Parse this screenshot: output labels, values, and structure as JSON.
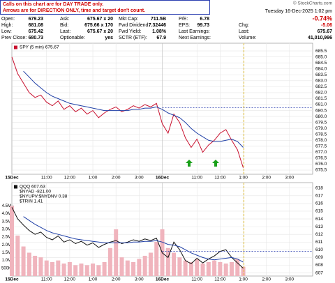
{
  "header": {
    "note": [
      "Calls on this chart are for DAY TRADE only.",
      "Arrows are for DIRECTION ONLY, time and target don't count."
    ],
    "copyright": "© StockCharts.com",
    "datetime": "Tuesday 16-Dec-2025 1:02 pm",
    "change_pct": "-0.74%",
    "quote": [
      [
        [
          "Open:",
          "679.23"
        ],
        [
          "Ask:",
          "675.67 x 20"
        ],
        [
          "Mkt Cap:",
          "711.5B"
        ],
        [
          "P/E:",
          "6.78"
        ]
      ],
      [
        [
          "High:",
          "681.08"
        ],
        [
          "Bid:",
          "675.66 x 170"
        ],
        [
          "Fwd Dividend:",
          "7.32446"
        ],
        [
          "EPS:",
          "99.73"
        ],
        [
          "Chg:",
          "-5.06"
        ]
      ],
      [
        [
          "Low:",
          "675.42"
        ],
        [
          "Last:",
          "675.67 x 20"
        ],
        [
          "Fwd Yield:",
          "1.08%"
        ],
        [
          "Last Earnings:"
        ],
        [
          "Last:",
          "675.67"
        ]
      ],
      [
        [
          "Prev Close:",
          "680.73"
        ],
        [
          "Optionable:",
          "yes"
        ],
        [
          "SCTR (ETF):",
          "67.9"
        ],
        [
          "Next Earnings:"
        ],
        [
          "Volume:",
          "41,010,996"
        ]
      ]
    ]
  },
  "chart_data": [
    {
      "type": "line",
      "x": [
        0,
        0.25,
        0.5,
        0.75,
        1,
        1.25,
        1.5,
        1.75,
        2,
        2.25,
        2.5,
        2.75,
        3,
        3.25,
        3.5,
        3.75,
        4,
        4.25,
        4.5,
        4.75,
        5,
        5.25,
        5.5,
        5.75,
        6,
        6.25,
        6.5,
        6.75,
        7,
        7.25,
        7.5,
        7.75,
        8,
        8.25,
        8.5,
        8.75,
        9,
        9.25,
        9.5,
        9.75,
        10
      ],
      "series": [
        {
          "name": "SPY (5 min) 675.67",
          "color": "#c8102e",
          "values": [
            685.0,
            683.6,
            682.8,
            682.0,
            681.6,
            681.8,
            681.2,
            680.9,
            681.3,
            680.6,
            680.9,
            680.4,
            680.7,
            680.2,
            680.5,
            679.9,
            680.3,
            680.6,
            680.8,
            680.4,
            680.6,
            680.9,
            680.7,
            681.0,
            680.8,
            681.1,
            679.4,
            678.6,
            680.2,
            679.5,
            678.2,
            677.4,
            678.1,
            677.0,
            677.6,
            678.0,
            678.6,
            678.9,
            678.0,
            677.2,
            675.7
          ]
        },
        {
          "color": "#1f3fa6",
          "values": [
            null,
            null,
            683.8,
            683.3,
            682.8,
            682.4,
            682.0,
            681.7,
            681.5,
            681.3,
            681.1,
            681.0,
            680.9,
            680.8,
            680.7,
            680.6,
            680.5,
            680.5,
            680.5,
            680.5,
            680.5,
            680.6,
            680.6,
            680.7,
            680.7,
            680.8,
            680.6,
            680.3,
            680.1,
            679.9,
            679.5,
            679.0,
            678.6,
            678.3,
            678.0,
            677.9,
            677.9,
            678.0,
            678.1,
            677.9,
            677.4
          ]
        }
      ],
      "xlim": [
        0,
        13
      ],
      "xticks": [
        {
          "value": 0,
          "label": "15Dec"
        },
        {
          "value": 1.5,
          "label": "11:00"
        },
        {
          "value": 2.5,
          "label": "12:00"
        },
        {
          "value": 3.5,
          "label": "1:00"
        },
        {
          "value": 4.5,
          "label": "2:00"
        },
        {
          "value": 5.5,
          "label": "3:00"
        },
        {
          "value": 6.5,
          "label": "16Dec"
        },
        {
          "value": 8,
          "label": "11:00"
        },
        {
          "value": 9,
          "label": "12:00"
        },
        {
          "value": 10,
          "label": "1:00"
        },
        {
          "value": 11,
          "label": "2:00"
        },
        {
          "value": 12,
          "label": "3:00"
        }
      ],
      "ylim": [
        675.15,
        686.15
      ],
      "yticks": [
        {
          "value": 675.5,
          "label": "675.5"
        },
        {
          "value": 676,
          "label": "676.0"
        },
        {
          "value": 676.5,
          "label": "676.5"
        },
        {
          "value": 677,
          "label": "677.0"
        },
        {
          "value": 677.5,
          "label": "677.5"
        },
        {
          "value": 678,
          "label": "678.0"
        },
        {
          "value": 678.5,
          "label": "678.5"
        },
        {
          "value": 679,
          "label": "679.0"
        },
        {
          "value": 679.5,
          "label": "679.5"
        },
        {
          "value": 680,
          "label": "680.0"
        },
        {
          "value": 680.5,
          "label": "680.5"
        },
        {
          "value": 681,
          "label": "681.0"
        },
        {
          "value": 681.5,
          "label": "681.5"
        },
        {
          "value": 682,
          "label": "682.0"
        },
        {
          "value": 682.5,
          "label": "682.5"
        },
        {
          "value": 683,
          "label": "683.0"
        },
        {
          "value": 683.5,
          "label": "683.5"
        },
        {
          "value": 684,
          "label": "684.0"
        },
        {
          "value": 684.5,
          "label": "684.5"
        },
        {
          "value": 685,
          "label": "685.0"
        },
        {
          "value": 685.5,
          "label": "685.5"
        }
      ],
      "hline": 680.73,
      "vline": 10.03,
      "grid": true
    },
    {
      "type": "combo",
      "x": [
        0,
        0.25,
        0.5,
        0.75,
        1,
        1.25,
        1.5,
        1.75,
        2,
        2.25,
        2.5,
        2.75,
        3,
        3.25,
        3.5,
        3.75,
        4,
        4.25,
        4.5,
        4.75,
        5,
        5.25,
        5.5,
        5.75,
        6,
        6.25,
        6.5,
        6.75,
        7,
        7.25,
        7.5,
        7.75,
        8,
        8.25,
        8.5,
        8.75,
        9,
        9.25,
        9.5,
        9.75,
        10
      ],
      "series": [
        {
          "kind": "bar",
          "color": "#f0b4bd",
          "values": [
            4500000,
            2600000,
            1900000,
            1500000,
            1300000,
            1200000,
            1000000,
            900000,
            1000000,
            800000,
            900000,
            700000,
            800000,
            700000,
            800000,
            700000,
            900000,
            1800000,
            3000000,
            1200000,
            1000000,
            900000,
            1100000,
            1300000,
            1500000,
            2200000,
            3000000,
            1800000,
            1500000,
            1200000,
            1000000,
            900000,
            1100000,
            800000,
            900000,
            1000000,
            900000,
            800000,
            900000,
            1100000,
            600000
          ]
        },
        {
          "kind": "line",
          "axis": "y2",
          "name": "QQQ 607.63",
          "color": "#111111",
          "values": [
            615.5,
            614.0,
            613.2,
            612.5,
            612.0,
            612.3,
            611.6,
            611.3,
            611.8,
            611.0,
            611.3,
            610.8,
            611.1,
            610.6,
            610.9,
            610.3,
            610.7,
            611.0,
            611.2,
            610.8,
            611.0,
            611.3,
            611.1,
            611.4,
            611.2,
            611.5,
            609.6,
            609.0,
            611.0,
            610.0,
            608.6,
            608.2,
            608.9,
            608.3,
            608.8,
            609.2,
            609.8,
            610.0,
            609.0,
            608.3,
            607.6
          ]
        },
        {
          "kind": "line",
          "axis": "y2",
          "color": "#1f3fa6",
          "values": [
            null,
            null,
            614.3,
            613.8,
            613.3,
            612.9,
            612.5,
            612.2,
            612.0,
            611.8,
            611.6,
            611.4,
            611.3,
            611.2,
            611.1,
            611.0,
            610.9,
            610.9,
            610.9,
            610.9,
            610.9,
            611.0,
            611.0,
            611.1,
            611.1,
            611.2,
            611.0,
            610.7,
            610.6,
            610.4,
            610.0,
            609.6,
            609.3,
            609.0,
            608.8,
            608.7,
            608.8,
            608.9,
            609.0,
            608.8,
            608.4
          ]
        }
      ],
      "indicators": [
        "$NYAD -821.00",
        "$NYUPV:$NYDNV 0.38",
        "$TRIN 1.41"
      ],
      "xlim": [
        0,
        13
      ],
      "xticks": [
        {
          "value": 0,
          "label": "15Dec"
        },
        {
          "value": 1.5,
          "label": "11:00"
        },
        {
          "value": 2.5,
          "label": "12:00"
        },
        {
          "value": 3.5,
          "label": "1:00"
        },
        {
          "value": 4.5,
          "label": "2:00"
        },
        {
          "value": 5.5,
          "label": "3:00"
        },
        {
          "value": 6.5,
          "label": "16Dec"
        },
        {
          "value": 8,
          "label": "11:00"
        },
        {
          "value": 9,
          "label": "12:00"
        },
        {
          "value": 10,
          "label": "1:00"
        },
        {
          "value": 11,
          "label": "2:00"
        },
        {
          "value": 12,
          "label": "3:00"
        }
      ],
      "ylim": [
        0,
        6000000
      ],
      "yticks": [
        {
          "value": 500000,
          "label": "500K"
        },
        {
          "value": 1000000,
          "label": "1.0M"
        },
        {
          "value": 1500000,
          "label": "1.5M"
        },
        {
          "value": 2000000,
          "label": "2.0M"
        },
        {
          "value": 2500000,
          "label": "2.5M"
        },
        {
          "value": 3000000,
          "label": "3.0M"
        },
        {
          "value": 3500000,
          "label": "3.5M"
        },
        {
          "value": 4000000,
          "label": "4.0M"
        },
        {
          "value": 4500000,
          "label": "4.5M"
        }
      ],
      "y2lim": [
        606.6,
        618.7
      ],
      "y2ticks": [
        607,
        608,
        609,
        610,
        611,
        612,
        613,
        614,
        615,
        616,
        617,
        618
      ],
      "hline": 609.8,
      "vline": 10.03,
      "grid": true
    }
  ]
}
